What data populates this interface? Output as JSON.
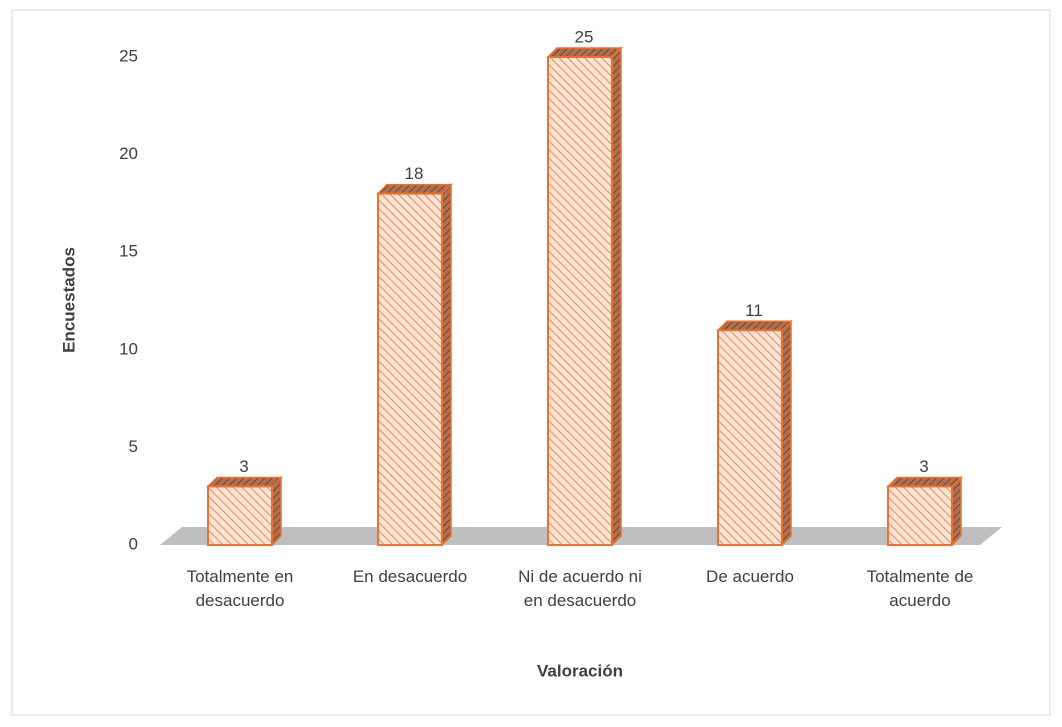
{
  "chart_data": {
    "type": "bar",
    "categories": [
      "Totalmente en desacuerdo",
      "En desacuerdo",
      "Ni de acuerdo ni en desacuerdo",
      "De acuerdo",
      "Totalmente de acuerdo"
    ],
    "values": [
      3,
      18,
      25,
      11,
      3
    ],
    "color": "#e97132",
    "ylim": [
      0,
      25
    ],
    "yticks": [
      0,
      5,
      10,
      15,
      20,
      25
    ],
    "grid": false,
    "ylabel": "Encuestados",
    "xlabel": "Valoración"
  }
}
